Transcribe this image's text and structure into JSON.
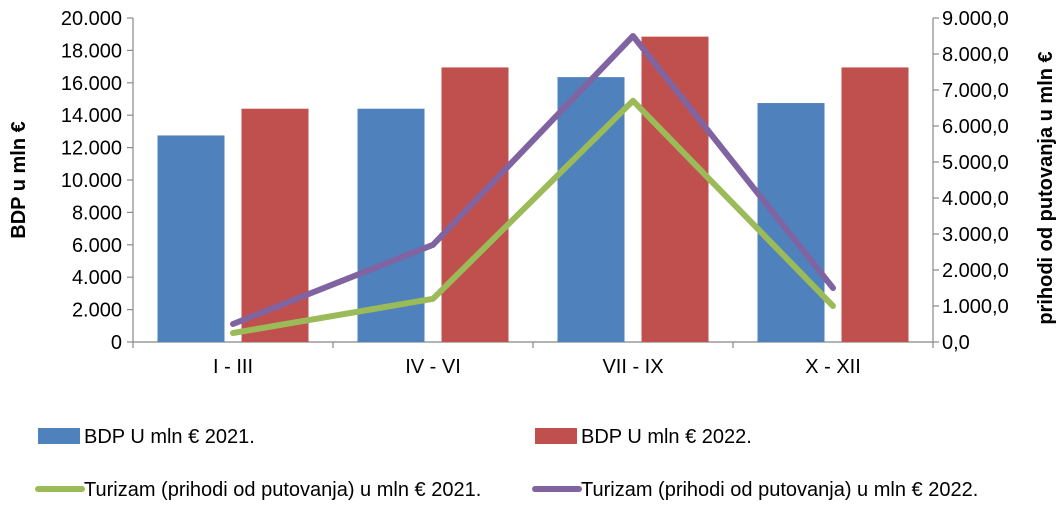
{
  "chart_data": {
    "type": "bar",
    "categories": [
      "I - III",
      "IV - VI",
      "VII - IX",
      "X - XII"
    ],
    "series": [
      {
        "name": "BDP U mln € 2021.",
        "kind": "bar",
        "axis": "left",
        "color": "#4F81BD",
        "values": [
          12750,
          14400,
          16350,
          14750
        ]
      },
      {
        "name": "BDP U mln € 2022.",
        "kind": "bar",
        "axis": "left",
        "color": "#C0504D",
        "values": [
          14400,
          16950,
          18850,
          16950
        ]
      },
      {
        "name": "Turizam (prihodi od putovanja) u mln € 2021.",
        "kind": "line",
        "axis": "right",
        "color": "#9BBB59",
        "values": [
          250,
          1200,
          6700,
          1000
        ]
      },
      {
        "name": "Turizam (prihodi od putovanja) u mln € 2022.",
        "kind": "line",
        "axis": "right",
        "color": "#8064A2",
        "values": [
          500,
          2700,
          8500,
          1500
        ]
      }
    ],
    "ylabel": "BDP u mln €",
    "y2label": "prihodi od putovanja u mln €",
    "ylim": [
      0,
      20000
    ],
    "y2lim": [
      0,
      9000
    ],
    "yticks": [
      "0",
      "2.000",
      "4.000",
      "6.000",
      "8.000",
      "10.000",
      "12.000",
      "14.000",
      "16.000",
      "18.000",
      "20.000"
    ],
    "y2ticks": [
      "0,0",
      "1.000,0",
      "2.000,0",
      "3.000,0",
      "4.000,0",
      "5.000,0",
      "6.000,0",
      "7.000,0",
      "8.000,0",
      "9.000,0"
    ],
    "grid": false,
    "legend_position": "bottom"
  }
}
